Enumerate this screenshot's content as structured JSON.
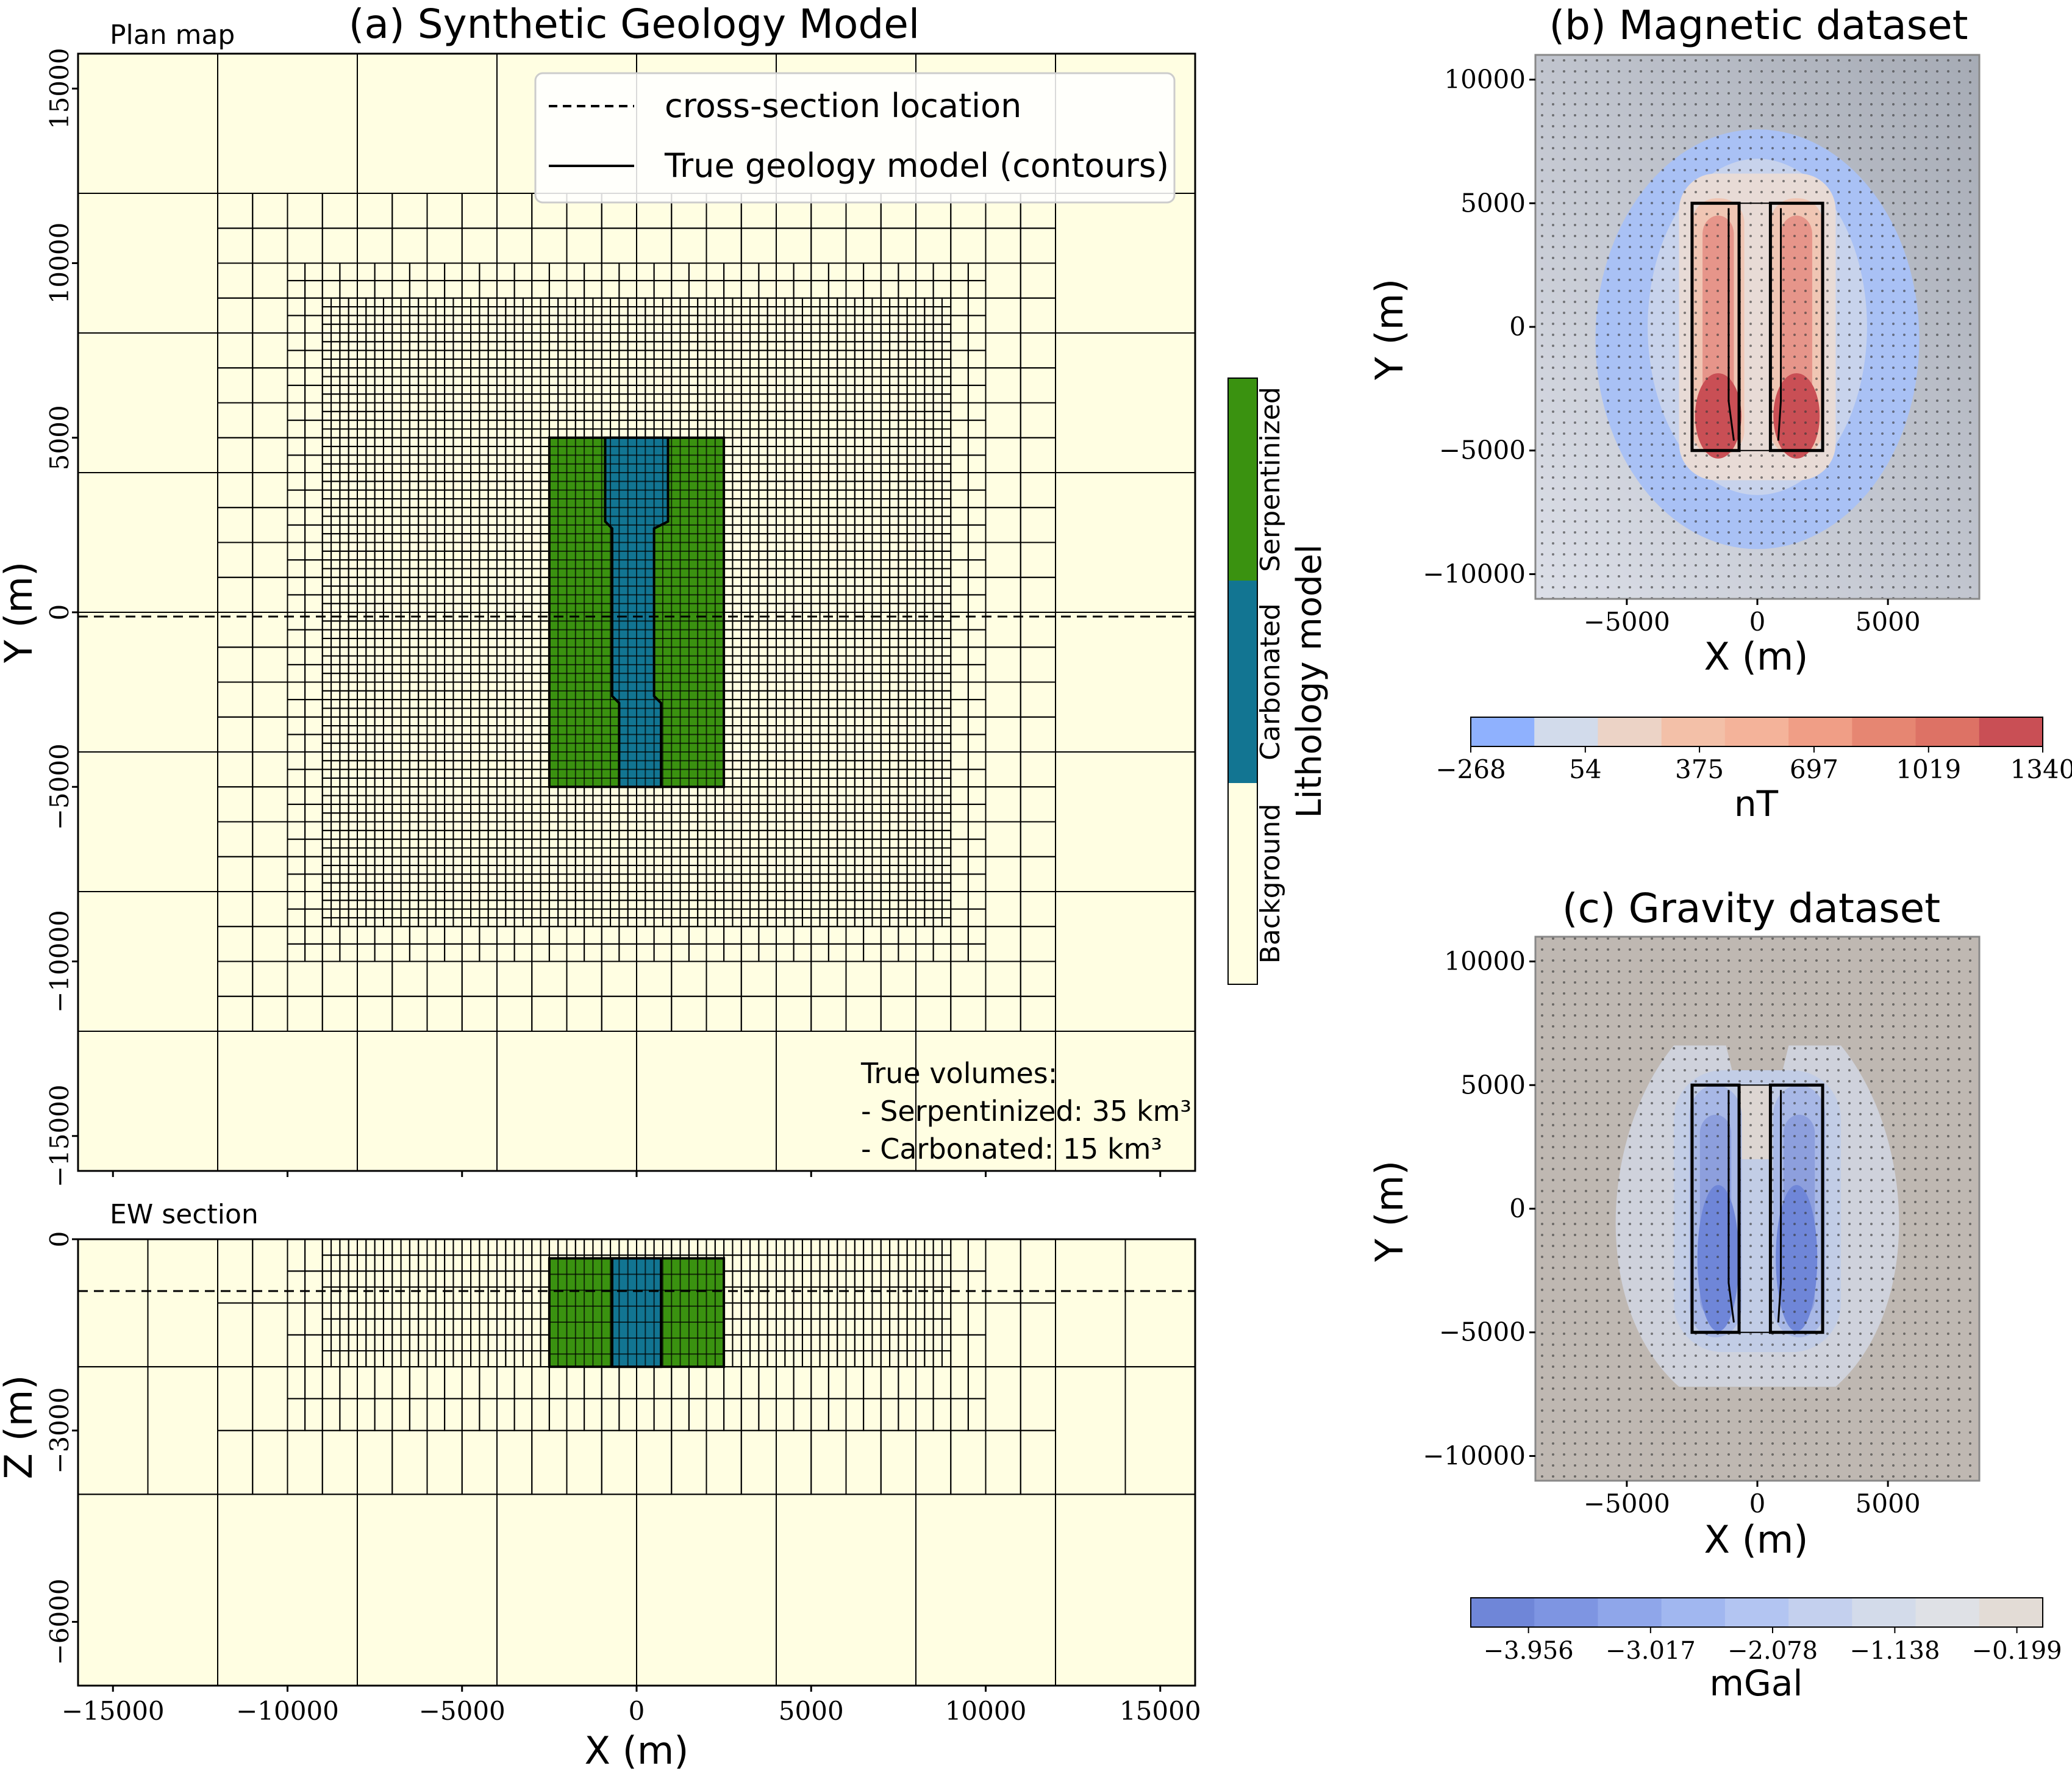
{
  "figure": {
    "panel_a": {
      "title": "(a) Synthetic Geology Model",
      "plan": {
        "label": "Plan map",
        "xlabel": "X (m)",
        "ylabel": "Y (m)",
        "legend": [
          "cross-section location",
          "True geology model (contours)"
        ],
        "volumes_title": "True volumes:",
        "volumes": [
          "- Serpentinized:  35 km³",
          "- Carbonated:  15 km³"
        ]
      },
      "section": {
        "label": "EW section",
        "xlabel": "X (m)",
        "ylabel": "Z (m)"
      },
      "colorbar": {
        "label": "Lithology model",
        "classes": [
          "Background",
          "Carbonated",
          "Serpentinized"
        ]
      }
    },
    "panel_b": {
      "title": "(b) Magnetic dataset",
      "xlabel": "X (m)",
      "ylabel": "Y (m)",
      "units": "nT",
      "ticks": [
        "−268",
        "54",
        "375",
        "697",
        "1019",
        "1340"
      ]
    },
    "panel_c": {
      "title": "(c) Gravity dataset",
      "xlabel": "X (m)",
      "ylabel": "Y (m)",
      "units": "mGal",
      "ticks": [
        "−3.956",
        "−3.017",
        "−2.078",
        "−1.138",
        "−0.199"
      ]
    }
  },
  "colors": {
    "background": "#fffee2",
    "carbonated": "#127592",
    "serpentinized": "#3a9210",
    "mag_low": "#8db0fe",
    "mag_high": "#c94f55",
    "grav_low": "#6f86d8",
    "grav_high": "#e3dcd6"
  },
  "chart_data": [
    {
      "type": "heatmap",
      "name": "plan map",
      "xlabel": "X (m)",
      "ylabel": "Y (m)",
      "xlim": [
        -16000,
        16000
      ],
      "ylim": [
        -16000,
        16000
      ],
      "xticks": [
        -15000,
        -10000,
        -5000,
        0,
        5000,
        10000,
        15000
      ],
      "yticks": [
        -15000,
        -10000,
        -5000,
        0,
        5000,
        10000,
        15000
      ],
      "cross_section_y": 0,
      "bodies": [
        {
          "lithology": "Serpentinized",
          "x": [
            -2500,
            2500
          ],
          "y": [
            -5000,
            5000
          ]
        },
        {
          "lithology": "Carbonated",
          "polygon": [
            [
              -900,
              5000
            ],
            [
              900,
              5000
            ],
            [
              900,
              2600
            ],
            [
              500,
              2400
            ],
            [
              500,
              -2400
            ],
            [
              700,
              -2600
            ],
            [
              700,
              -5000
            ],
            [
              -500,
              -5000
            ],
            [
              -500,
              -2600
            ],
            [
              -700,
              -2400
            ],
            [
              -700,
              2400
            ],
            [
              -900,
              2600
            ]
          ]
        }
      ],
      "true_volumes_km3": {
        "Serpentinized": 35,
        "Carbonated": 15
      }
    },
    {
      "type": "heatmap",
      "name": "EW section",
      "xlabel": "X (m)",
      "ylabel": "Z (m)",
      "xlim": [
        -16000,
        16000
      ],
      "ylim": [
        -7000,
        0
      ],
      "xticks": [
        -15000,
        -10000,
        -5000,
        0,
        5000,
        10000,
        15000
      ],
      "yticks": [
        0,
        -3000,
        -6000
      ],
      "bodies": [
        {
          "lithology": "Serpentinized",
          "x": [
            -2500,
            2500
          ],
          "z": [
            -2000,
            -300
          ]
        },
        {
          "lithology": "Carbonated",
          "x": [
            -700,
            700
          ],
          "z": [
            -2000,
            -300
          ]
        }
      ]
    },
    {
      "type": "heatmap",
      "name": "magnetic",
      "xlabel": "X (m)",
      "ylabel": "Y (m)",
      "xlim": [
        -8500,
        8500
      ],
      "ylim": [
        -11000,
        11000
      ],
      "xticks": [
        -5000,
        0,
        5000
      ],
      "yticks": [
        -10000,
        -5000,
        0,
        5000,
        10000
      ],
      "colorbar_ticks": [
        -268,
        54,
        375,
        697,
        1019,
        1340
      ],
      "units": "nT",
      "range": [
        -268,
        1340
      ]
    },
    {
      "type": "heatmap",
      "name": "gravity",
      "xlabel": "X (m)",
      "ylabel": "Y (m)",
      "xlim": [
        -8500,
        8500
      ],
      "ylim": [
        -11000,
        11000
      ],
      "xticks": [
        -5000,
        0,
        5000
      ],
      "yticks": [
        -10000,
        -5000,
        0,
        5000,
        10000
      ],
      "colorbar_ticks": [
        -3.956,
        -3.017,
        -2.078,
        -1.138,
        -0.199
      ],
      "units": "mGal",
      "range": [
        -4.4,
        0.0
      ]
    }
  ]
}
